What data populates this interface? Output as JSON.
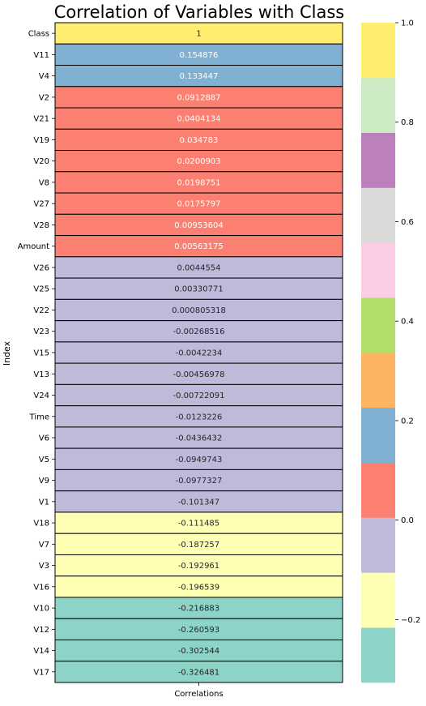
{
  "chart_data": {
    "type": "heatmap",
    "title": "Correlation of Variables with Class",
    "ylabel": "Index",
    "xlabel": "",
    "column_labels": [
      "Correlations"
    ],
    "rows": [
      {
        "label": "Class",
        "value": 1,
        "value_text": "1"
      },
      {
        "label": "V11",
        "value": 0.154876,
        "value_text": "0.154876"
      },
      {
        "label": "V4",
        "value": 0.133447,
        "value_text": "0.133447"
      },
      {
        "label": "V2",
        "value": 0.0912887,
        "value_text": "0.0912887"
      },
      {
        "label": "V21",
        "value": 0.0404134,
        "value_text": "0.0404134"
      },
      {
        "label": "V19",
        "value": 0.034783,
        "value_text": "0.034783"
      },
      {
        "label": "V20",
        "value": 0.0200903,
        "value_text": "0.0200903"
      },
      {
        "label": "V8",
        "value": 0.0198751,
        "value_text": "0.0198751"
      },
      {
        "label": "V27",
        "value": 0.0175797,
        "value_text": "0.0175797"
      },
      {
        "label": "V28",
        "value": 0.00953604,
        "value_text": "0.00953604"
      },
      {
        "label": "Amount",
        "value": 0.00563175,
        "value_text": "0.00563175"
      },
      {
        "label": "V26",
        "value": 0.0044554,
        "value_text": "0.0044554"
      },
      {
        "label": "V25",
        "value": 0.00330771,
        "value_text": "0.00330771"
      },
      {
        "label": "V22",
        "value": 0.000805318,
        "value_text": "0.000805318"
      },
      {
        "label": "V23",
        "value": -0.00268516,
        "value_text": "-0.00268516"
      },
      {
        "label": "V15",
        "value": -0.0042234,
        "value_text": "-0.0042234"
      },
      {
        "label": "V13",
        "value": -0.00456978,
        "value_text": "-0.00456978"
      },
      {
        "label": "V24",
        "value": -0.00722091,
        "value_text": "-0.00722091"
      },
      {
        "label": "Time",
        "value": -0.0123226,
        "value_text": "-0.0123226"
      },
      {
        "label": "V6",
        "value": -0.0436432,
        "value_text": "-0.0436432"
      },
      {
        "label": "V5",
        "value": -0.0949743,
        "value_text": "-0.0949743"
      },
      {
        "label": "V9",
        "value": -0.0977327,
        "value_text": "-0.0977327"
      },
      {
        "label": "V1",
        "value": -0.101347,
        "value_text": "-0.101347"
      },
      {
        "label": "V18",
        "value": -0.111485,
        "value_text": "-0.111485"
      },
      {
        "label": "V7",
        "value": -0.187257,
        "value_text": "-0.187257"
      },
      {
        "label": "V3",
        "value": -0.192961,
        "value_text": "-0.192961"
      },
      {
        "label": "V16",
        "value": -0.196539,
        "value_text": "-0.196539"
      },
      {
        "label": "V10",
        "value": -0.216883,
        "value_text": "-0.216883"
      },
      {
        "label": "V12",
        "value": -0.260593,
        "value_text": "-0.260593"
      },
      {
        "label": "V14",
        "value": -0.302544,
        "value_text": "-0.302544"
      },
      {
        "label": "V17",
        "value": -0.326481,
        "value_text": "-0.326481"
      }
    ],
    "colorbar": {
      "range": [
        -0.326481,
        1
      ],
      "ticks": [
        {
          "value": -0.2,
          "label": "−0.2"
        },
        {
          "value": 0.0,
          "label": "0.0"
        },
        {
          "value": 0.2,
          "label": "0.2"
        },
        {
          "value": 0.4,
          "label": "0.4"
        },
        {
          "value": 0.6,
          "label": "0.6"
        },
        {
          "value": 0.8,
          "label": "0.8"
        },
        {
          "value": 1.0,
          "label": "1.0"
        }
      ],
      "colors": [
        "#8dd3c7",
        "#ffffb3",
        "#bebada",
        "#fb8072",
        "#80b1d3",
        "#fdb462",
        "#b3de69",
        "#fccde5",
        "#d9d9d9",
        "#bc80bd",
        "#ccebc5",
        "#ffed6f"
      ]
    },
    "grid": false,
    "legend": "colorbar-right",
    "label_color_dark": "#262626",
    "label_color_light": "#ffffff"
  }
}
